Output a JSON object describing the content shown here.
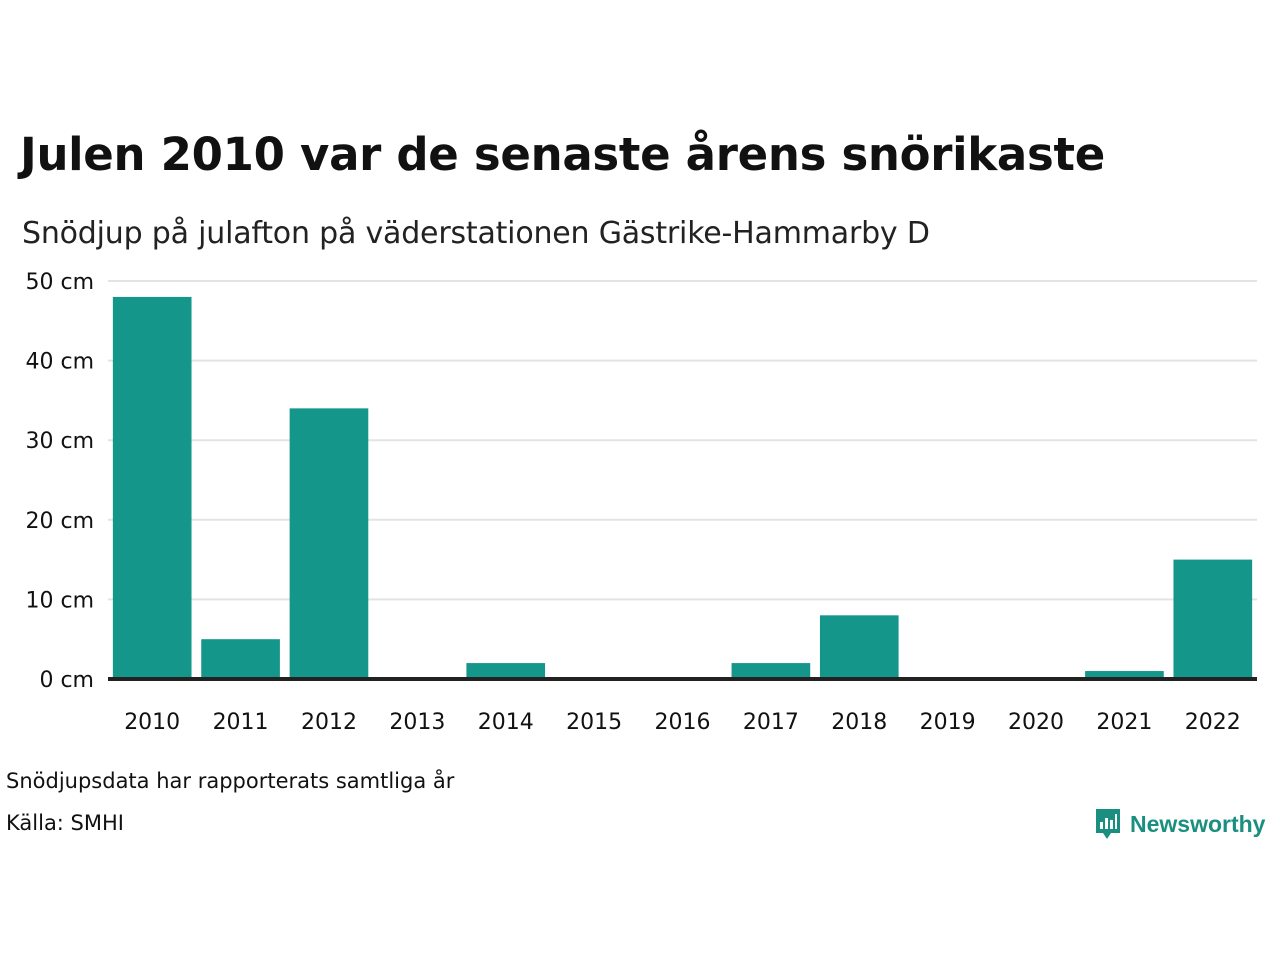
{
  "chart_data": {
    "type": "bar",
    "title": "Julen 2010 var de senaste årens snörikaste",
    "subtitle": "Snödjup på julafton på väderstationen Gästrike-Hammarby D",
    "categories": [
      "2010",
      "2011",
      "2012",
      "2013",
      "2014",
      "2015",
      "2016",
      "2017",
      "2018",
      "2019",
      "2020",
      "2021",
      "2022"
    ],
    "values": [
      48,
      5,
      34,
      0,
      2,
      0,
      0,
      2,
      8,
      0,
      0,
      1,
      15
    ],
    "ylim": [
      0,
      50
    ],
    "yticks": [
      0,
      10,
      20,
      30,
      40,
      50
    ],
    "ytick_labels": [
      "0 cm",
      "10 cm",
      "20 cm",
      "30 cm",
      "40 cm",
      "50 cm"
    ],
    "grid": true,
    "legend": "none",
    "colors": {
      "bar": "#14968a",
      "grid": "#e3e3e3",
      "baseline": "#222222"
    }
  },
  "footer": {
    "note": "Snödjupsdata har rapporterats samtliga år",
    "source": "Källa: SMHI"
  },
  "brand": {
    "name": "Newsworthy",
    "icon": "bar-chart-speech-icon",
    "color": "#1a8f80"
  }
}
